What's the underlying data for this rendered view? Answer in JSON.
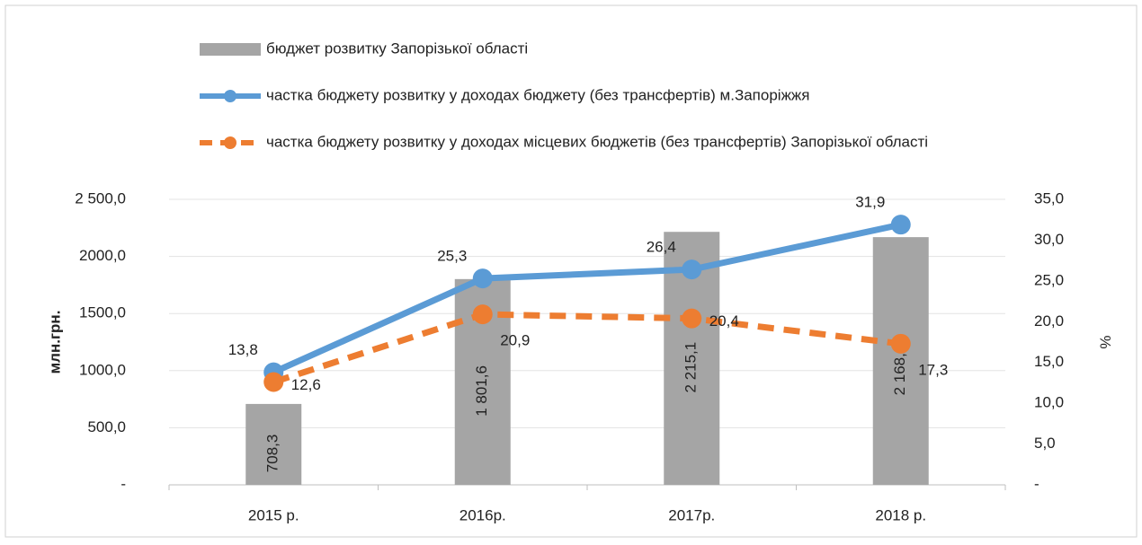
{
  "chart_data": {
    "type": "bar_line",
    "categories": [
      "2015 р.",
      "2016р.",
      "2017р.",
      "2018 р."
    ],
    "ylabel": "млн.грн.",
    "y2label": "%",
    "ylim": [
      0,
      2500
    ],
    "yticks": [
      {
        "value": 0,
        "label": "-"
      },
      {
        "value": 500,
        "label": "500,0"
      },
      {
        "value": 1000,
        "label": "1000,0"
      },
      {
        "value": 1500,
        "label": "1500,0"
      },
      {
        "value": 2000,
        "label": "2000,0"
      },
      {
        "value": 2500,
        "label": "2 500,0"
      }
    ],
    "y2lim": [
      0,
      35
    ],
    "y2ticks": [
      {
        "value": 0,
        "label": "-"
      },
      {
        "value": 5,
        "label": "5,0"
      },
      {
        "value": 10,
        "label": "10,0"
      },
      {
        "value": 15,
        "label": "15,0"
      },
      {
        "value": 20,
        "label": "20,0"
      },
      {
        "value": 25,
        "label": "25,0"
      },
      {
        "value": 30,
        "label": "30,0"
      },
      {
        "value": 35,
        "label": "35,0"
      }
    ],
    "grid": true,
    "series": [
      {
        "name": "бюджет розвитку Запорізької області",
        "type": "bar",
        "color": "#a5a5a5",
        "values": [
          708.3,
          1801.6,
          2215.1,
          2168.8
        ],
        "value_labels": [
          "708,3",
          "1 801,6",
          "2 215,1",
          "2 168,8"
        ]
      },
      {
        "name": "частка бюджету розвитку у доходах бюджету (без трансфертів) м.Запоріжжя",
        "type": "line",
        "axis": "y2",
        "color": "#5b9bd5",
        "values": [
          13.8,
          25.3,
          26.4,
          31.9
        ],
        "value_labels": [
          "13,8",
          "25,3",
          "26,4",
          "31,9"
        ]
      },
      {
        "name": "частка бюджету розвитку у доходах місцевих бюджетів (без трансфертів)  Запорізької області",
        "type": "line",
        "dashed": true,
        "axis": "y2",
        "color": "#ed7d31",
        "values": [
          12.6,
          20.9,
          20.4,
          17.3
        ],
        "value_labels": [
          "12,6",
          "20,9",
          "20,4",
          "17,3"
        ]
      }
    ]
  }
}
